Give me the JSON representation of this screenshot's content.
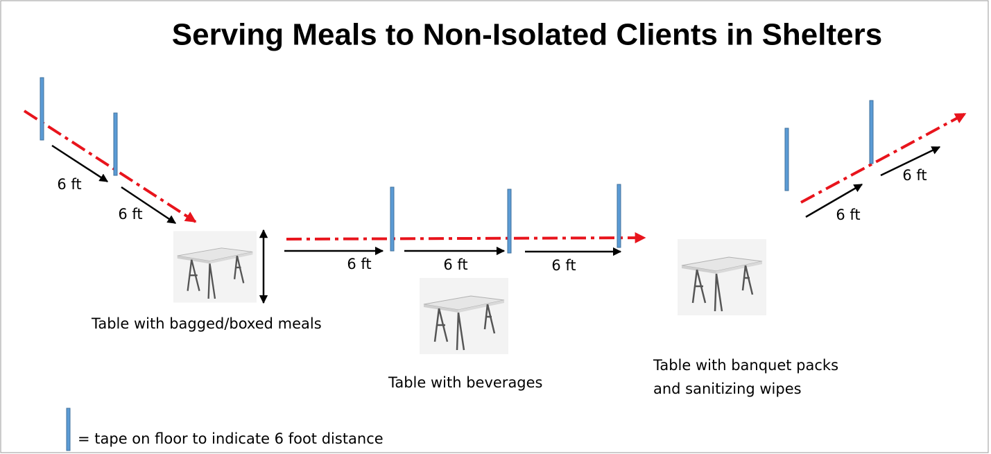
{
  "title": "Serving Meals to Non-Isolated Clients in Shelters",
  "distance_labels": [
    "6 ft",
    "6 ft",
    "6 ft",
    "6 ft",
    "6 ft",
    "6 ft",
    "6 ft"
  ],
  "tables": [
    {
      "label": "Table with bagged/boxed meals"
    },
    {
      "label": "Table with beverages"
    },
    {
      "label_lines": [
        "Table with banquet packs",
        "and sanitizing wipes"
      ]
    }
  ],
  "legend": {
    "text": "= tape on floor to indicate 6 foot distance"
  }
}
